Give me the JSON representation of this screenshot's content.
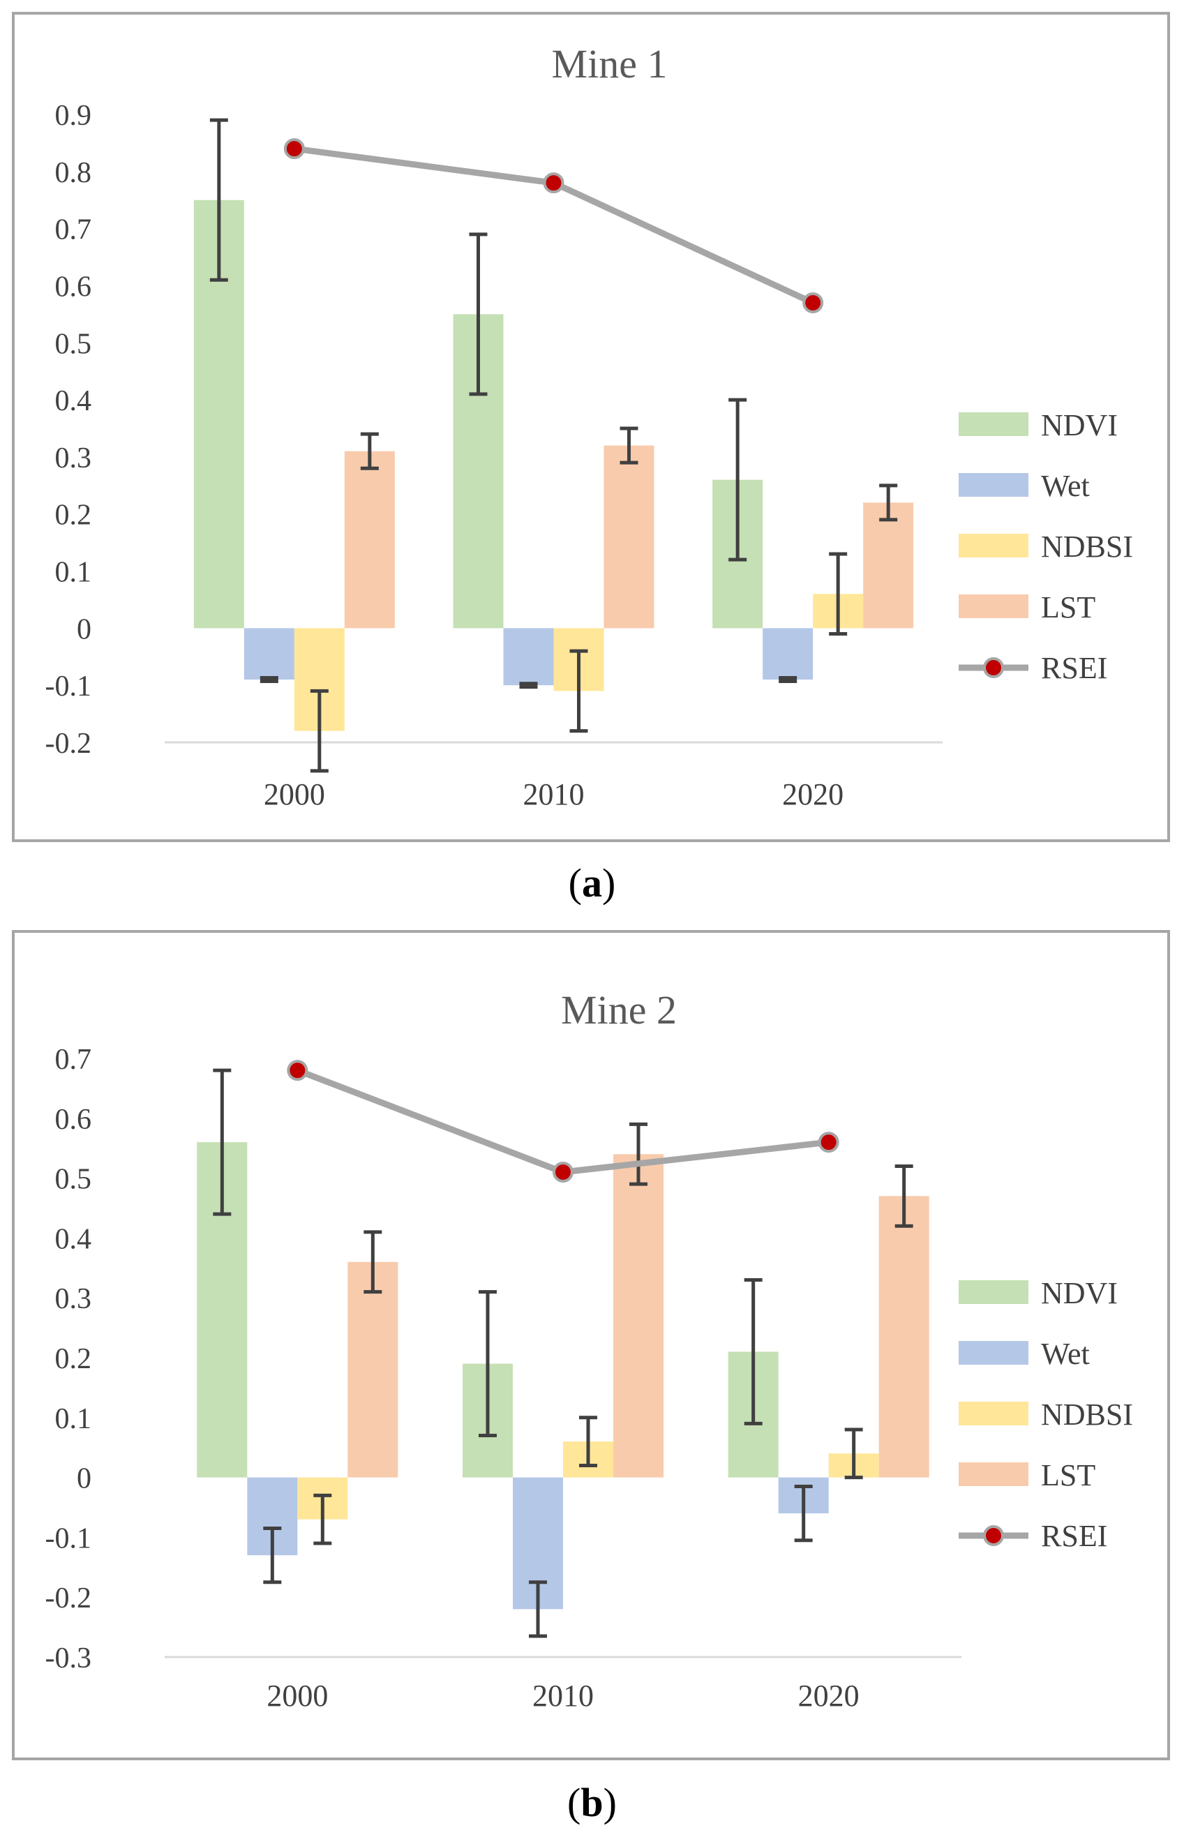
{
  "colors": {
    "NDVI": "#c5e0b4",
    "Wet": "#b4c7e7",
    "NDBSI": "#ffe699",
    "LST": "#f8cbad",
    "RSEI_line": "#a6a6a6",
    "RSEI_marker": "#c00000",
    "error_bar": "#404040",
    "axis_text": "#404040",
    "title_text": "#595959",
    "axis_line": "#d9d9d9"
  },
  "captions": {
    "a": {
      "open": "(",
      "letter": "a",
      "close": ")"
    },
    "b": {
      "open": "(",
      "letter": "b",
      "close": ")"
    }
  },
  "chart_data": [
    {
      "type": "bar",
      "title": "Mine 1",
      "xlabel": "",
      "ylabel": "",
      "categories": [
        "2000",
        "2010",
        "2020"
      ],
      "ylim": [
        -0.2,
        0.9
      ],
      "yticks": [
        -0.2,
        -0.1,
        0,
        0.1,
        0.2,
        0.3,
        0.4,
        0.5,
        0.6,
        0.7,
        0.8,
        0.9
      ],
      "ytick_labels": [
        "-0.2",
        "-0.1",
        "0",
        "0.1",
        "0.2",
        "0.3",
        "0.4",
        "0.5",
        "0.6",
        "0.7",
        "0.8",
        "0.9"
      ],
      "legend_position": "right",
      "series": [
        {
          "name": "NDVI",
          "kind": "bar",
          "values": [
            0.75,
            0.55,
            0.26
          ],
          "error": [
            0.14,
            0.14,
            0.14
          ]
        },
        {
          "name": "Wet",
          "kind": "bar",
          "values": [
            -0.09,
            -0.1,
            -0.09
          ],
          "error": [
            0.003,
            0.003,
            0.003
          ]
        },
        {
          "name": "NDBSI",
          "kind": "bar",
          "values": [
            -0.18,
            -0.11,
            0.06
          ],
          "error": [
            0.07,
            0.07,
            0.07
          ]
        },
        {
          "name": "LST",
          "kind": "bar",
          "values": [
            0.31,
            0.32,
            0.22
          ],
          "error": [
            0.03,
            0.03,
            0.03
          ]
        },
        {
          "name": "RSEI",
          "kind": "line",
          "values": [
            0.84,
            0.78,
            0.57
          ]
        }
      ]
    },
    {
      "type": "bar",
      "title": "Mine 2",
      "xlabel": "",
      "ylabel": "",
      "categories": [
        "2000",
        "2010",
        "2020"
      ],
      "ylim": [
        -0.3,
        0.7
      ],
      "yticks": [
        -0.3,
        -0.2,
        -0.1,
        0,
        0.1,
        0.2,
        0.3,
        0.4,
        0.5,
        0.6,
        0.7
      ],
      "ytick_labels": [
        "-0.3",
        "-0.2",
        "-0.1",
        "0",
        "0.1",
        "0.2",
        "0.3",
        "0.4",
        "0.5",
        "0.6",
        "0.7"
      ],
      "legend_position": "right",
      "series": [
        {
          "name": "NDVI",
          "kind": "bar",
          "values": [
            0.56,
            0.19,
            0.21
          ],
          "error": [
            0.12,
            0.12,
            0.12
          ]
        },
        {
          "name": "Wet",
          "kind": "bar",
          "values": [
            -0.13,
            -0.22,
            -0.06
          ],
          "error": [
            0.045,
            0.045,
            0.045
          ]
        },
        {
          "name": "NDBSI",
          "kind": "bar",
          "values": [
            -0.07,
            0.06,
            0.04
          ],
          "error": [
            0.04,
            0.04,
            0.04
          ]
        },
        {
          "name": "LST",
          "kind": "bar",
          "values": [
            0.36,
            0.54,
            0.47
          ],
          "error": [
            0.05,
            0.05,
            0.05
          ]
        },
        {
          "name": "RSEI",
          "kind": "line",
          "values": [
            0.68,
            0.51,
            0.56
          ]
        }
      ]
    }
  ]
}
